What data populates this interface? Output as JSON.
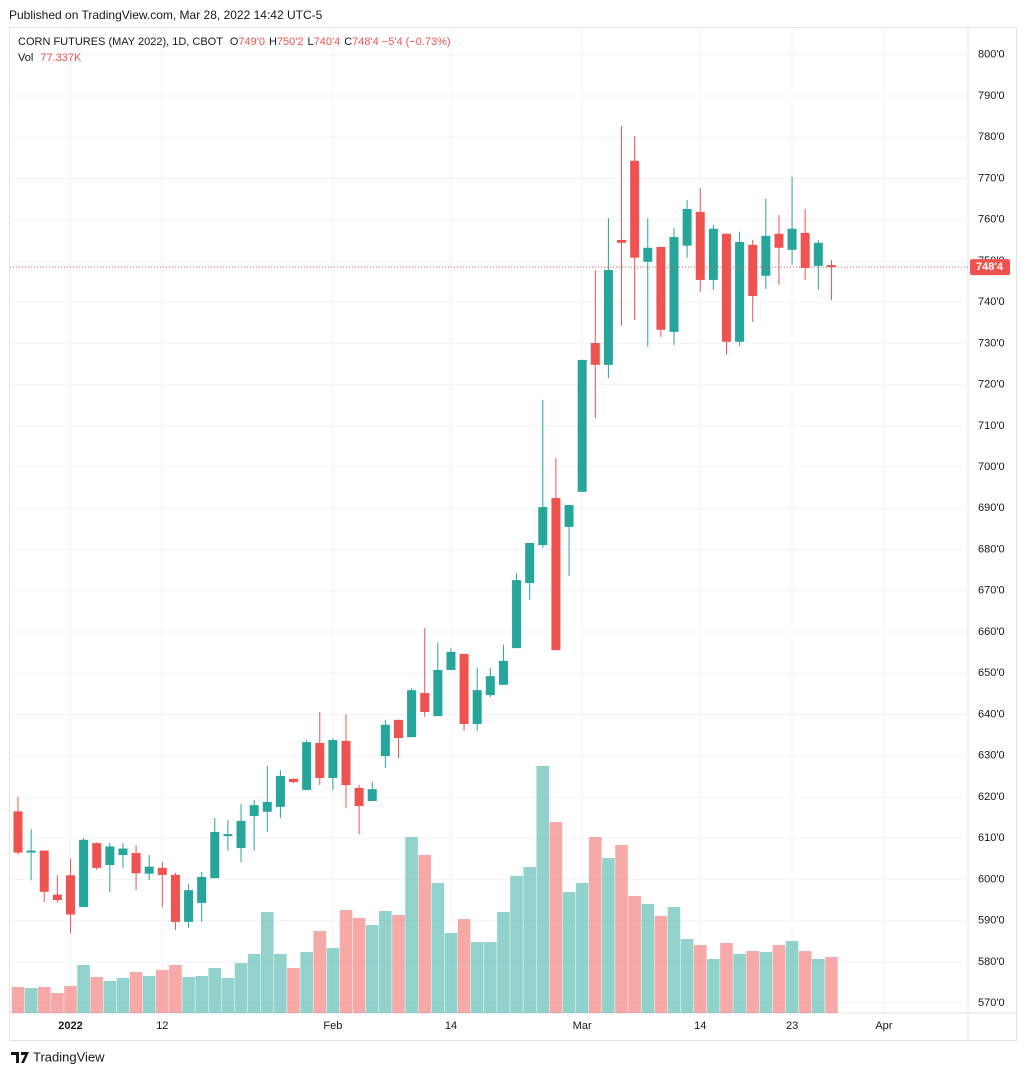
{
  "header": {
    "published": "Published on TradingView.com, Mar 28, 2022 14:42 UTC-5"
  },
  "chart_data": {
    "type": "candlestick",
    "title": "CORN FUTURES (MAY 2022), 1D, CBOT",
    "ohlc_legend": [
      {
        "key": "O",
        "value": "749'0"
      },
      {
        "key": "H",
        "value": "750'2"
      },
      {
        "key": "L",
        "value": "740'4"
      },
      {
        "key": "C",
        "value": "748'4"
      }
    ],
    "change": "−5'4 (−0.73%)",
    "categories": [
      null,
      null,
      null,
      null,
      "2022",
      null,
      null,
      null,
      null,
      null,
      null,
      "12",
      null,
      null,
      null,
      null,
      null,
      null,
      null,
      null,
      null,
      null,
      null,
      null,
      "Feb",
      null,
      null,
      null,
      null,
      null,
      null,
      null,
      null,
      "14",
      null,
      null,
      null,
      null,
      null,
      null,
      null,
      null,
      null,
      "Mar",
      null,
      null,
      null,
      null,
      null,
      null,
      null,
      null,
      "14",
      null,
      null,
      null,
      null,
      null,
      null,
      "23",
      null,
      null,
      null,
      null,
      null,
      null,
      "Apr"
    ],
    "open": [
      616.5,
      606.5,
      607,
      596.3,
      601,
      593.3,
      608.8,
      603.5,
      605.9,
      606.4,
      601.4,
      602.8,
      601.1,
      589.7,
      594.3,
      600.3,
      610.5,
      607.6,
      615.4,
      616.4,
      617.6,
      624.4,
      621.7,
      633.1,
      624.6,
      633.6,
      622.2,
      619,
      629.9,
      638.7,
      634.5,
      645.2,
      639.6,
      650.8,
      654.7,
      637.7,
      644.7,
      647.2,
      656.1,
      671.9,
      681.1,
      692.5,
      685.5,
      694,
      730.1,
      724.8,
      755.1,
      774.3,
      749.8,
      753.4,
      732.8,
      753.7,
      761.9,
      745.4,
      756.6,
      730.4,
      753.9,
      746.4,
      756.6,
      752.7,
      756.8,
      748.8,
      749,
      null,
      null,
      null,
      null
    ],
    "high": [
      620,
      612.2,
      607,
      601,
      605,
      610,
      609,
      608.8,
      608.8,
      608.3,
      605.9,
      604.2,
      601.6,
      598.9,
      601.8,
      614.9,
      614.4,
      618.3,
      619.3,
      627.5,
      626.5,
      624.4,
      633.8,
      640.6,
      634.3,
      640.1,
      622.9,
      623.6,
      638.7,
      638.7,
      646.4,
      661,
      657.4,
      656.1,
      654.7,
      651.3,
      651.3,
      656.9,
      674.3,
      681.6,
      716.3,
      702.2,
      690.8,
      726,
      747.8,
      760.4,
      782.8,
      780.3,
      760.4,
      753.4,
      758,
      764.8,
      767.7,
      758.8,
      756.6,
      757.1,
      755.1,
      765.1,
      761.2,
      770.4,
      762.6,
      755.1,
      750.25,
      null,
      null,
      null,
      null
    ],
    "low": [
      606,
      599.8,
      594.5,
      594.3,
      587,
      593.3,
      602.3,
      596.9,
      602.8,
      597.4,
      599.9,
      593.3,
      587.7,
      588.2,
      589.7,
      600.3,
      607,
      604.2,
      607,
      611.5,
      614.9,
      623.3,
      621.7,
      622.9,
      621.7,
      617.3,
      611,
      619,
      627,
      629.4,
      634.5,
      639.4,
      639.6,
      650.8,
      636,
      636,
      644.2,
      647.2,
      656.1,
      667.8,
      680.4,
      655.6,
      673.6,
      694,
      711.9,
      721.6,
      734.3,
      735.7,
      729.2,
      731.6,
      729.6,
      750.8,
      742.5,
      743,
      727.2,
      729.4,
      735.2,
      743.2,
      744.2,
      749.1,
      745.4,
      743,
      740.5,
      null,
      null,
      null,
      null
    ],
    "close": [
      606.5,
      607,
      597,
      595,
      591.5,
      609.6,
      602.8,
      608,
      607.5,
      601.5,
      603.1,
      601.1,
      589.7,
      597.4,
      600.6,
      611.5,
      611,
      614.2,
      618,
      618.8,
      625.1,
      623.6,
      633.3,
      624.6,
      633.8,
      622.9,
      617.8,
      621.9,
      637.5,
      634.3,
      645.9,
      640.6,
      650.8,
      655.2,
      637.7,
      645.9,
      649.3,
      653,
      672.6,
      681.6,
      690.3,
      655.6,
      690.8,
      726,
      724.8,
      747.8,
      754.4,
      750.8,
      753.2,
      733.3,
      755.8,
      762.6,
      745.4,
      757.8,
      730.4,
      754.6,
      741.5,
      756.1,
      753.2,
      757.8,
      748.3,
      754.4,
      748.5,
      null,
      null,
      null,
      null
    ],
    "volume": {
      "name": "Vol",
      "values": [
        35.9,
        34.5,
        36,
        27.6,
        37.3,
        66.3,
        49.7,
        44.2,
        48.3,
        56.6,
        51.1,
        59.4,
        66.3,
        49.7,
        51.1,
        62.1,
        48.3,
        69,
        81.5,
        139.5,
        81.5,
        62.1,
        84.2,
        113.2,
        89.8,
        142.2,
        131.2,
        121.5,
        140.9,
        135.3,
        243,
        218.2,
        179.5,
        110.5,
        129.8,
        98,
        98,
        139.5,
        189.2,
        201.6,
        341.1,
        263.8,
        167.1,
        179.5,
        243,
        214.1,
        232,
        161.6,
        150.5,
        134,
        146.4,
        102.2,
        93.9,
        74.6,
        96.7,
        81.5,
        85.6,
        84.2,
        93.9,
        99.4,
        85.6,
        74.6,
        77.337,
        null,
        null,
        null,
        null
      ],
      "value_labels": [
        null,
        null,
        null,
        null,
        null,
        null,
        null,
        null,
        null,
        null,
        null,
        null,
        null,
        null,
        null,
        null,
        null,
        null,
        null,
        null,
        null,
        null,
        null,
        null,
        null,
        null,
        null,
        null,
        null,
        null,
        null,
        null,
        null,
        null,
        null,
        null,
        null,
        null,
        null,
        null,
        null,
        null,
        null,
        null,
        null,
        null,
        null,
        null,
        null,
        null,
        null,
        null,
        null,
        null,
        null,
        null,
        null,
        null,
        null,
        null,
        null,
        null,
        "77.337K",
        null,
        null,
        null,
        null
      ]
    },
    "ylim": [
      567.6,
      806.5
    ],
    "yticks": [
      {
        "value": 570,
        "label": "570'0"
      },
      {
        "value": 580,
        "label": "580'0"
      },
      {
        "value": 590,
        "label": "590'0"
      },
      {
        "value": 600,
        "label": "600'0"
      },
      {
        "value": 610,
        "label": "610'0"
      },
      {
        "value": 620,
        "label": "620'0"
      },
      {
        "value": 630,
        "label": "630'0"
      },
      {
        "value": 640,
        "label": "640'0"
      },
      {
        "value": 650,
        "label": "650'0"
      },
      {
        "value": 660,
        "label": "660'0"
      },
      {
        "value": 670,
        "label": "670'0"
      },
      {
        "value": 680,
        "label": "680'0"
      },
      {
        "value": 690,
        "label": "690'0"
      },
      {
        "value": 700,
        "label": "700'0"
      },
      {
        "value": 710,
        "label": "710'0"
      },
      {
        "value": 720,
        "label": "720'0"
      },
      {
        "value": 730,
        "label": "730'0"
      },
      {
        "value": 740,
        "label": "740'0"
      },
      {
        "value": 750,
        "label": "750'0"
      },
      {
        "value": 760,
        "label": "760'0"
      },
      {
        "value": 770,
        "label": "770'0"
      },
      {
        "value": 780,
        "label": "780'0"
      },
      {
        "value": 790,
        "label": "790'0"
      },
      {
        "value": 800,
        "label": "800'0"
      }
    ],
    "last_price_label": "748'4",
    "colors": {
      "up": "#26a69a",
      "down": "#ef5350"
    },
    "grid": true
  },
  "footer": {
    "brand": "TradingView"
  }
}
